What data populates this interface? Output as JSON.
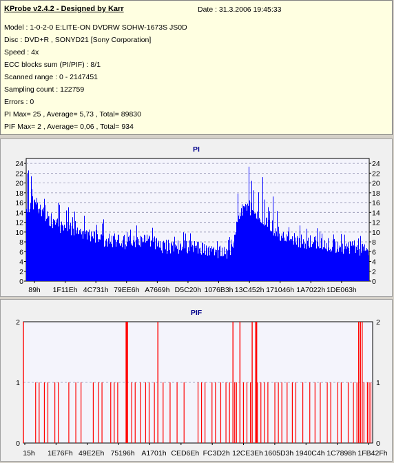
{
  "header": {
    "title": "KProbe v2.4.2 - Designed by Karr",
    "date": "Date : 31.3.2006 19:45:33"
  },
  "info_lines": [
    "Model : 1-0-2-0 E:LITE-ON DVDRW SOHW-1673S JS0D",
    "Disc : DVD+R , SONYD21 [Sony Corporation]",
    "Speed : 4x",
    "ECC blocks sum (PI/PIF) : 8/1",
    "Scanned range : 0 - 2147451",
    "Sampling count : 122759",
    "Errors : 0",
    "PI Max= 25 , Average= 5,73 , Total= 89830",
    "PIF Max= 2 , Average= 0,06 , Total= 934"
  ],
  "colors": {
    "pi": "#0000ff",
    "pif": "#ff0000",
    "plot_bg": "#f4f4fc",
    "grid": "#9090b0"
  },
  "chart_data": [
    {
      "type": "bar",
      "title": "PI",
      "ylim": [
        0,
        25
      ],
      "yticks": [
        0,
        2,
        4,
        6,
        8,
        10,
        12,
        14,
        16,
        18,
        20,
        22,
        24
      ],
      "xticks": [
        "89h",
        "1F11Eh",
        "4C731h",
        "79EE6h",
        "A7669h",
        "D5C20h",
        "1076B3h",
        "13C452h",
        "171046h",
        "1A7022h",
        "1DE063h"
      ],
      "grid": true,
      "x_fraction": [
        0,
        0.02,
        0.04,
        0.06,
        0.08,
        0.1,
        0.15,
        0.2,
        0.25,
        0.3,
        0.35,
        0.4,
        0.45,
        0.5,
        0.55,
        0.6,
        0.62,
        0.65,
        0.7,
        0.75,
        0.8,
        0.85,
        0.9,
        0.95,
        1.0
      ],
      "values_typical": [
        14,
        16,
        15,
        13,
        12,
        11,
        10,
        9,
        8,
        8,
        8,
        7,
        7,
        7,
        6,
        6,
        14,
        15,
        12,
        9,
        8,
        8,
        7,
        7,
        6
      ],
      "values_peak": [
        23,
        24,
        22,
        20,
        17,
        16,
        14,
        13,
        13,
        12,
        11,
        11,
        10,
        10,
        9,
        9,
        23,
        25,
        21,
        15,
        12,
        12,
        11,
        10,
        9
      ]
    },
    {
      "type": "bar",
      "title": "PIF",
      "ylim": [
        0,
        2
      ],
      "yticks": [
        0,
        1,
        2
      ],
      "xticks": [
        "15h",
        "1E76Fh",
        "49E2Eh",
        "75196h",
        "A1701h",
        "CED6Eh",
        "FC3D2h",
        "12CE3Eh",
        "1605D3h",
        "1940C4h",
        "1C7898h",
        "1FB42Fh"
      ],
      "grid": true,
      "spikes_level_2_x_fraction": [
        0.0,
        0.294,
        0.296,
        0.298,
        0.385,
        0.6,
        0.62,
        0.655,
        0.665,
        0.668,
        0.96,
        0.965,
        0.97
      ],
      "spikes_level_1_x_fraction": [
        0.035,
        0.045,
        0.06,
        0.07,
        0.09,
        0.1,
        0.13,
        0.15,
        0.165,
        0.2,
        0.215,
        0.225,
        0.25,
        0.26,
        0.27,
        0.31,
        0.32,
        0.335,
        0.35,
        0.36,
        0.375,
        0.4,
        0.42,
        0.44,
        0.46,
        0.5,
        0.51,
        0.52,
        0.54,
        0.55,
        0.565,
        0.58,
        0.59,
        0.605,
        0.61,
        0.63,
        0.64,
        0.65,
        0.67,
        0.68,
        0.69,
        0.7,
        0.72,
        0.73,
        0.74,
        0.755,
        0.77,
        0.78,
        0.8,
        0.82,
        0.835,
        0.85,
        0.87,
        0.88,
        0.9,
        0.91,
        0.93,
        0.945,
        0.955,
        0.975,
        0.985,
        0.99,
        0.995
      ]
    }
  ]
}
